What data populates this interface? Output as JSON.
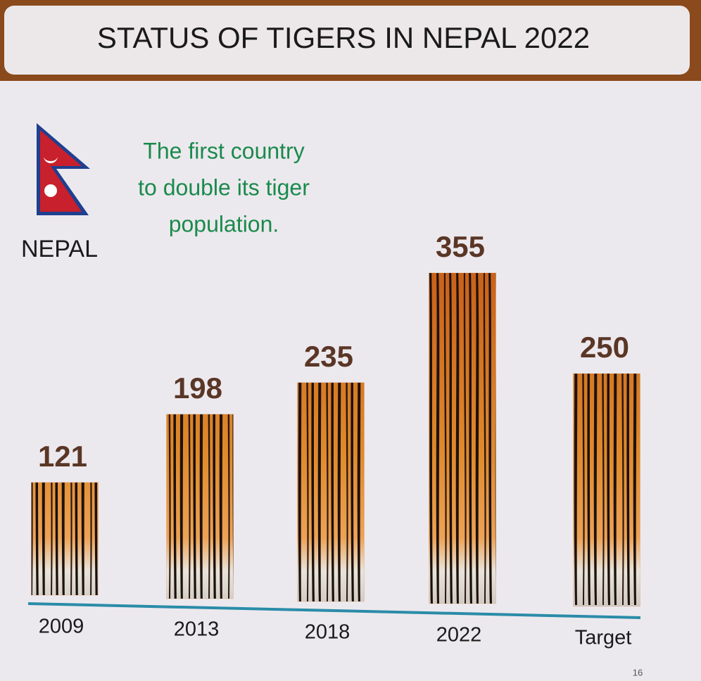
{
  "chart_data": {
    "type": "bar",
    "title": "STATUS OF TIGERS IN NEPAL 2022",
    "country_label": "NEPAL",
    "annotation": [
      "The first country",
      "to double its tiger",
      "population."
    ],
    "categories": [
      "2009",
      "2013",
      "2018",
      "2022",
      "Target"
    ],
    "values": [
      121,
      198,
      235,
      355,
      250
    ],
    "color": "#d9751f",
    "page_number": "16"
  }
}
